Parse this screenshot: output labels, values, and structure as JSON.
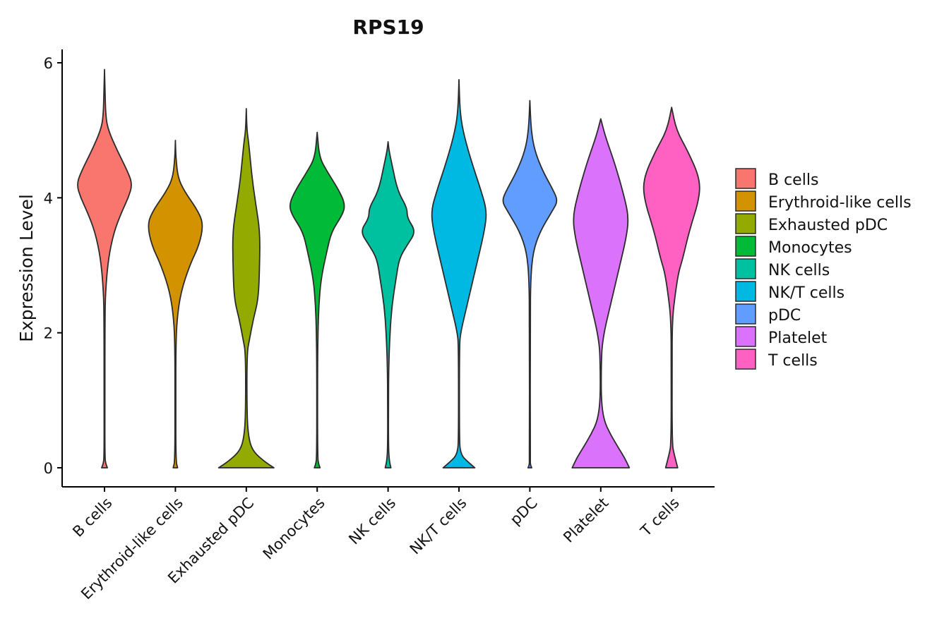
{
  "chart_data": {
    "type": "violin",
    "title": "RPS19",
    "xlabel": "",
    "ylabel": "Expression Level",
    "ylim": [
      -0.1,
      6.2
    ],
    "yticks": [
      0,
      2,
      4,
      6
    ],
    "legend_position": "right",
    "categories": [
      "B cells",
      "Erythroid-like cells",
      "Exhausted pDC",
      "Monocytes",
      "NK cells",
      "NK/T cells",
      "pDC",
      "Platelet",
      "T cells"
    ],
    "colors": [
      "#F8766D",
      "#D39200",
      "#93AA00",
      "#00BA38",
      "#00C19F",
      "#00B9E3",
      "#619CFF",
      "#DB72FB",
      "#FF61C3"
    ],
    "series": [
      {
        "name": "B cells",
        "max": 5.9,
        "profile": [
          [
            0,
            0.09
          ],
          [
            0.06,
            0.04
          ],
          [
            0.15,
            0.012
          ],
          [
            1.0,
            0.012
          ],
          [
            2.2,
            0.015
          ],
          [
            2.6,
            0.03
          ],
          [
            3.1,
            0.12
          ],
          [
            3.5,
            0.3
          ],
          [
            3.8,
            0.55
          ],
          [
            4.0,
            0.75
          ],
          [
            4.2,
            0.88
          ],
          [
            4.4,
            0.72
          ],
          [
            4.7,
            0.4
          ],
          [
            5.0,
            0.12
          ],
          [
            5.2,
            0.04
          ],
          [
            5.6,
            0.015
          ],
          [
            5.9,
            0.0
          ]
        ]
      },
      {
        "name": "Erythroid-like cells",
        "max": 4.85,
        "profile": [
          [
            0,
            0.07
          ],
          [
            0.1,
            0.015
          ],
          [
            1.0,
            0.012
          ],
          [
            1.8,
            0.015
          ],
          [
            2.2,
            0.05
          ],
          [
            2.6,
            0.17
          ],
          [
            3.0,
            0.45
          ],
          [
            3.3,
            0.75
          ],
          [
            3.6,
            0.88
          ],
          [
            3.8,
            0.72
          ],
          [
            4.1,
            0.28
          ],
          [
            4.3,
            0.08
          ],
          [
            4.6,
            0.015
          ],
          [
            4.85,
            0.0
          ]
        ]
      },
      {
        "name": "Exhausted pDC",
        "max": 5.32,
        "profile": [
          [
            0,
            0.87
          ],
          [
            0.1,
            0.55
          ],
          [
            0.25,
            0.2
          ],
          [
            0.45,
            0.07
          ],
          [
            0.8,
            0.02
          ],
          [
            1.7,
            0.02
          ],
          [
            1.9,
            0.1
          ],
          [
            2.2,
            0.22
          ],
          [
            2.5,
            0.38
          ],
          [
            3.0,
            0.42
          ],
          [
            3.5,
            0.43
          ],
          [
            3.9,
            0.3
          ],
          [
            4.3,
            0.18
          ],
          [
            4.8,
            0.08
          ],
          [
            5.0,
            0.02
          ],
          [
            5.32,
            0.0
          ]
        ]
      },
      {
        "name": "Monocytes",
        "max": 4.97,
        "profile": [
          [
            0,
            0.09
          ],
          [
            0.05,
            0.05
          ],
          [
            0.15,
            0.012
          ],
          [
            1.5,
            0.012
          ],
          [
            2.0,
            0.025
          ],
          [
            2.4,
            0.05
          ],
          [
            2.8,
            0.12
          ],
          [
            3.2,
            0.3
          ],
          [
            3.5,
            0.45
          ],
          [
            3.75,
            0.8
          ],
          [
            3.9,
            0.88
          ],
          [
            4.1,
            0.7
          ],
          [
            4.4,
            0.3
          ],
          [
            4.6,
            0.07
          ],
          [
            4.97,
            0.0
          ]
        ]
      },
      {
        "name": "NK cells",
        "max": 4.83,
        "profile": [
          [
            0,
            0.09
          ],
          [
            0.1,
            0.04
          ],
          [
            0.3,
            0.012
          ],
          [
            1.0,
            0.012
          ],
          [
            1.5,
            0.02
          ],
          [
            2.0,
            0.06
          ],
          [
            2.4,
            0.12
          ],
          [
            2.8,
            0.25
          ],
          [
            3.1,
            0.35
          ],
          [
            3.3,
            0.6
          ],
          [
            3.5,
            0.88
          ],
          [
            3.7,
            0.6
          ],
          [
            3.85,
            0.6
          ],
          [
            4.1,
            0.3
          ],
          [
            4.5,
            0.12
          ],
          [
            4.7,
            0.03
          ],
          [
            4.83,
            0.0
          ]
        ]
      },
      {
        "name": "NK/T cells",
        "max": 5.75,
        "profile": [
          [
            0,
            0.5
          ],
          [
            0.08,
            0.3
          ],
          [
            0.2,
            0.04
          ],
          [
            0.5,
            0.012
          ],
          [
            1.8,
            0.015
          ],
          [
            2.0,
            0.05
          ],
          [
            2.4,
            0.25
          ],
          [
            3.0,
            0.55
          ],
          [
            3.5,
            0.8
          ],
          [
            3.8,
            0.88
          ],
          [
            4.1,
            0.7
          ],
          [
            4.6,
            0.35
          ],
          [
            5.0,
            0.12
          ],
          [
            5.3,
            0.03
          ],
          [
            5.75,
            0.0
          ]
        ]
      },
      {
        "name": "pDC",
        "max": 5.44,
        "profile": [
          [
            0,
            0.06
          ],
          [
            0.04,
            0.02
          ],
          [
            0.1,
            0.012
          ],
          [
            2.2,
            0.012
          ],
          [
            2.8,
            0.025
          ],
          [
            3.2,
            0.1
          ],
          [
            3.5,
            0.32
          ],
          [
            3.8,
            0.7
          ],
          [
            3.95,
            0.88
          ],
          [
            4.1,
            0.75
          ],
          [
            4.4,
            0.4
          ],
          [
            4.7,
            0.15
          ],
          [
            5.0,
            0.04
          ],
          [
            5.44,
            0.0
          ]
        ]
      },
      {
        "name": "Platelet",
        "max": 5.17,
        "profile": [
          [
            0,
            0.9
          ],
          [
            0.15,
            0.75
          ],
          [
            0.3,
            0.55
          ],
          [
            0.5,
            0.3
          ],
          [
            0.7,
            0.1
          ],
          [
            1.0,
            0.015
          ],
          [
            1.5,
            0.015
          ],
          [
            1.9,
            0.05
          ],
          [
            2.5,
            0.35
          ],
          [
            3.0,
            0.6
          ],
          [
            3.4,
            0.8
          ],
          [
            3.7,
            0.88
          ],
          [
            4.0,
            0.75
          ],
          [
            4.5,
            0.45
          ],
          [
            4.9,
            0.15
          ],
          [
            5.17,
            0.0
          ]
        ]
      },
      {
        "name": "T cells",
        "max": 5.34,
        "profile": [
          [
            0,
            0.19
          ],
          [
            0.2,
            0.08
          ],
          [
            0.35,
            0.015
          ],
          [
            1.5,
            0.012
          ],
          [
            2.2,
            0.02
          ],
          [
            2.6,
            0.12
          ],
          [
            2.9,
            0.22
          ],
          [
            3.1,
            0.35
          ],
          [
            3.5,
            0.55
          ],
          [
            4.0,
            0.88
          ],
          [
            4.3,
            0.88
          ],
          [
            4.7,
            0.5
          ],
          [
            5.0,
            0.15
          ],
          [
            5.34,
            0.0
          ]
        ]
      }
    ]
  }
}
